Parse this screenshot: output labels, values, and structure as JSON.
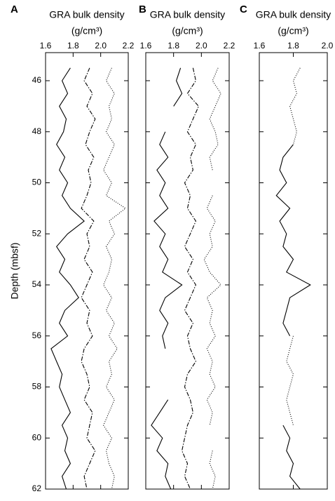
{
  "chart_data": [
    {
      "type": "line",
      "panel": "A",
      "title": "GRA bulk density",
      "subtitle": "(g/cm³)",
      "ylabel": "Depth (mbsf)",
      "show_ytick_labels": true,
      "xlim": [
        1.6,
        2.2
      ],
      "xticks": [
        1.6,
        1.8,
        {
          "value": 2.0,
          "label": "2.0"
        },
        2.2
      ],
      "ylim": [
        44.9,
        62
      ],
      "yticks": [
        46,
        48,
        50,
        52,
        54,
        56,
        58,
        60,
        62
      ],
      "y": [
        45.5,
        46,
        46.5,
        47,
        47.5,
        48,
        48.5,
        49,
        49.5,
        50,
        50.5,
        51,
        51.5,
        52,
        52.5,
        53,
        53.5,
        54,
        54.5,
        55,
        55.5,
        56,
        56.5,
        57,
        57.5,
        58,
        58.5,
        59,
        59.5,
        60,
        60.5,
        61,
        61.5,
        62
      ],
      "series": [
        {
          "color": "#000000",
          "dash": "solid",
          "values": [
            1.78,
            1.72,
            1.76,
            1.7,
            1.75,
            1.73,
            1.68,
            1.74,
            1.7,
            1.76,
            1.72,
            1.78,
            1.88,
            1.76,
            1.68,
            1.74,
            1.7,
            1.78,
            1.84,
            1.74,
            1.7,
            1.76,
            1.64,
            1.68,
            1.72,
            1.7,
            1.74,
            1.78,
            1.72,
            1.76,
            1.74,
            1.78,
            1.72,
            1.75
          ]
        },
        {
          "color": "#000000",
          "dash": "dashdot",
          "values": [
            1.92,
            1.88,
            1.94,
            1.9,
            1.96,
            1.92,
            1.89,
            1.95,
            1.91,
            1.93,
            1.9,
            1.86,
            1.95,
            1.9,
            1.92,
            1.88,
            1.94,
            1.9,
            1.86,
            1.92,
            1.9,
            1.94,
            1.88,
            1.86,
            1.9,
            1.92,
            1.88,
            1.94,
            1.92,
            1.9,
            1.96,
            1.92,
            1.88,
            1.9
          ]
        },
        {
          "color": "#000000",
          "dash": "dotted",
          "values": [
            2.08,
            2.04,
            2.1,
            2.06,
            2.08,
            2.04,
            2.1,
            2.06,
            2.02,
            2.08,
            2.04,
            2.18,
            2.06,
            2.1,
            2.04,
            2.08,
            2.06,
            2.02,
            2.08,
            2.04,
            2.1,
            2.06,
            2.12,
            2.06,
            2.08,
            2.04,
            2.1,
            2.06,
            2.02,
            2.08,
            2.04,
            2.06,
            2.1,
            2.08
          ]
        }
      ]
    },
    {
      "type": "line",
      "panel": "B",
      "title": "GRA bulk density",
      "subtitle": "(g/cm³)",
      "show_ytick_labels": false,
      "xlim": [
        1.6,
        2.2
      ],
      "xticks": [
        1.6,
        1.8,
        {
          "value": 2.0,
          "label": "2.0"
        },
        2.2
      ],
      "ylim": [
        44.9,
        62
      ],
      "yticks": [
        46,
        48,
        50,
        52,
        54,
        56,
        58,
        60,
        62
      ],
      "y": [
        45.5,
        46,
        46.5,
        47,
        47.5,
        48,
        48.5,
        49,
        49.5,
        50,
        50.5,
        51,
        51.5,
        52,
        52.5,
        53,
        53.5,
        54,
        54.5,
        55,
        55.5,
        56,
        56.5,
        57,
        57.5,
        58,
        58.5,
        59,
        59.5,
        60,
        60.5,
        61,
        61.5,
        62
      ],
      "series": [
        {
          "color": "#000000",
          "dash": "solid",
          "values": [
            1.85,
            1.82,
            1.86,
            1.8,
            null,
            1.74,
            1.7,
            1.76,
            1.68,
            1.74,
            1.7,
            1.76,
            1.66,
            1.74,
            1.7,
            1.76,
            1.72,
            1.86,
            1.74,
            1.7,
            1.76,
            1.72,
            1.74,
            null,
            null,
            null,
            1.76,
            1.7,
            1.64,
            1.72,
            1.68,
            1.76,
            1.74,
            1.78
          ]
        },
        {
          "color": "#000000",
          "dash": "dashdot",
          "values": [
            1.94,
            1.96,
            1.9,
            1.98,
            1.94,
            1.9,
            1.96,
            1.92,
            1.94,
            1.88,
            1.92,
            1.9,
            1.96,
            1.92,
            1.88,
            1.94,
            1.9,
            1.96,
            1.92,
            1.88,
            1.94,
            1.9,
            1.92,
            1.96,
            1.9,
            1.88,
            1.92,
            1.94,
            1.9,
            1.88,
            1.86,
            1.9,
            1.88,
            1.92
          ]
        },
        {
          "color": "#000000",
          "dash": "dotted",
          "values": [
            2.12,
            2.08,
            2.14,
            2.1,
            2.06,
            2.1,
            2.12,
            2.06,
            2.08,
            null,
            2.08,
            2.04,
            2.1,
            2.06,
            2.08,
            2.02,
            2.06,
            2.14,
            2.04,
            2.08,
            2.06,
            2.1,
            2.04,
            2.08,
            2.06,
            2.1,
            2.04,
            2.08,
            2.06,
            null,
            2.08,
            2.06,
            2.1,
            2.08
          ]
        }
      ]
    },
    {
      "type": "line",
      "panel": "C",
      "title": "GRA bulk density",
      "subtitle": "(g/cm³)",
      "show_ytick_labels": false,
      "xlim": [
        1.6,
        2.0
      ],
      "xticks": [
        1.6,
        1.8,
        {
          "value": 2.0,
          "label": "2.0"
        }
      ],
      "ylim": [
        44.9,
        62
      ],
      "yticks": [
        46,
        48,
        50,
        52,
        54,
        56,
        58,
        60,
        62
      ],
      "y": [
        45.5,
        46,
        46.5,
        47,
        47.5,
        48,
        48.5,
        49,
        49.5,
        50,
        50.5,
        51,
        51.5,
        52,
        52.5,
        53,
        53.5,
        54,
        54.5,
        55,
        55.5,
        56,
        56.5,
        57,
        57.5,
        58,
        58.5,
        59,
        59.5,
        60,
        60.5,
        61,
        61.5,
        62
      ],
      "series": [
        {
          "color": "#000000",
          "dash": "solid",
          "values": [
            null,
            null,
            null,
            null,
            null,
            null,
            1.8,
            1.74,
            1.72,
            1.76,
            1.7,
            1.78,
            1.72,
            1.76,
            1.74,
            1.8,
            1.76,
            1.9,
            1.78,
            1.76,
            1.74,
            1.78,
            null,
            null,
            null,
            null,
            null,
            null,
            1.74,
            1.78,
            1.76,
            1.8,
            1.78,
            1.84
          ]
        },
        {
          "color": "#000000",
          "dash": "dotted",
          "values": [
            1.84,
            1.8,
            1.82,
            1.78,
            1.8,
            1.82,
            1.8,
            null,
            null,
            null,
            null,
            null,
            null,
            null,
            null,
            null,
            null,
            null,
            null,
            null,
            null,
            1.8,
            1.78,
            1.76,
            1.8,
            1.78,
            1.76,
            1.78,
            1.8,
            null,
            null,
            null,
            null,
            null
          ]
        }
      ]
    }
  ]
}
